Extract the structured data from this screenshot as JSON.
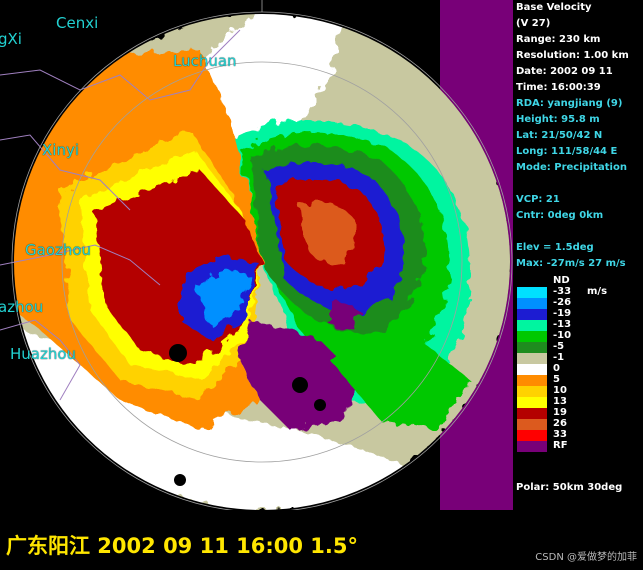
{
  "product": {
    "title": "Base Velocity",
    "code": "(V 27)",
    "range": "Range: 230 km",
    "resolution": "Resolution: 1.00 km",
    "date": "Date: 2002 09 11",
    "time": "Time: 16:00:39",
    "rda": "RDA: yangjiang (9)",
    "height": "Height: 95.8 m",
    "lat": "Lat:  21/50/42 N",
    "long": "Long: 111/58/44 E",
    "mode": "Mode: Precipitation",
    "vcp": "VCP: 21",
    "cntr": "Cntr:   0deg   0km",
    "elev": "Elev = 1.5deg",
    "max": "Max: -27m/s  27 m/s",
    "polar": "Polar:  50km 30deg"
  },
  "legend": {
    "unit": "m/s",
    "items": [
      {
        "label": "ND",
        "color": "#000000"
      },
      {
        "label": "-33",
        "color": "#00e0ff"
      },
      {
        "label": "-26",
        "color": "#0090ff"
      },
      {
        "label": "-19",
        "color": "#1c1cd2"
      },
      {
        "label": "-13",
        "color": "#00f5a0"
      },
      {
        "label": "-10",
        "color": "#00c800"
      },
      {
        "label": "-5",
        "color": "#1e8c1e"
      },
      {
        "label": "-1",
        "color": "#c8c8a0"
      },
      {
        "label": "0",
        "color": "#ffffff"
      },
      {
        "label": "5",
        "color": "#ff8c00"
      },
      {
        "label": "10",
        "color": "#ffd200"
      },
      {
        "label": "13",
        "color": "#ffff00"
      },
      {
        "label": "19",
        "color": "#b40000"
      },
      {
        "label": "26",
        "color": "#dc5a1e"
      },
      {
        "label": "33",
        "color": "#ff0000"
      },
      {
        "label": "RF",
        "color": "#780078"
      }
    ]
  },
  "map": {
    "cities": [
      "Cenxi",
      "gXi",
      "Luchuan",
      "Xinyi",
      "Gaozhou",
      "azhou",
      "Huazhou"
    ]
  },
  "caption": "广东阳江 2002 09 11 16:00  1.5°",
  "watermark": "CSDN @爱做梦的加菲"
}
